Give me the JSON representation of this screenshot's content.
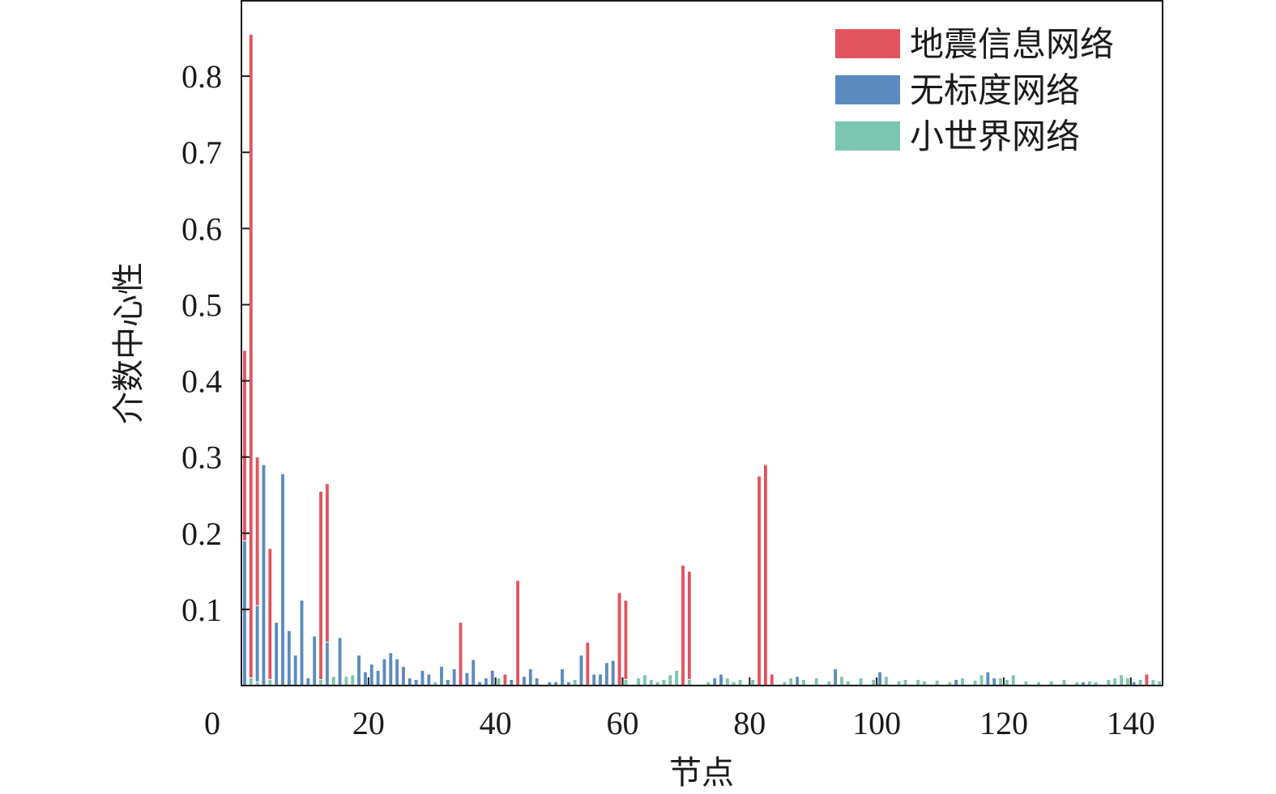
{
  "chart_data": {
    "type": "bar",
    "title": "",
    "xlabel": "节点",
    "ylabel": "介数中心性",
    "xlim": [
      0,
      145
    ],
    "ylim": [
      0,
      0.9
    ],
    "x_ticks": [
      0,
      20,
      40,
      60,
      80,
      100,
      120,
      140
    ],
    "y_ticks": [
      0.1,
      0.2,
      0.3,
      0.4,
      0.5,
      0.6,
      0.7,
      0.8
    ],
    "grid": false,
    "legend_position": "top-right",
    "series": [
      {
        "name": "地震信息网络",
        "color": "#e2545f",
        "points": [
          [
            0,
            0.44
          ],
          [
            1,
            0.855
          ],
          [
            2,
            0.3
          ],
          [
            4,
            0.18
          ],
          [
            12,
            0.255
          ],
          [
            13,
            0.265
          ],
          [
            34,
            0.083
          ],
          [
            41,
            0.015
          ],
          [
            43,
            0.138
          ],
          [
            54,
            0.057
          ],
          [
            59,
            0.122
          ],
          [
            60,
            0.112
          ],
          [
            69,
            0.158
          ],
          [
            70,
            0.15
          ],
          [
            81,
            0.275
          ],
          [
            82,
            0.29
          ],
          [
            83,
            0.015
          ],
          [
            142,
            0.015
          ]
        ]
      },
      {
        "name": "无标度网络",
        "color": "#5b8bbe",
        "points": [
          [
            0,
            0.19
          ],
          [
            2,
            0.105
          ],
          [
            3,
            0.29
          ],
          [
            5,
            0.083
          ],
          [
            6,
            0.278
          ],
          [
            7,
            0.072
          ],
          [
            8,
            0.04
          ],
          [
            9,
            0.112
          ],
          [
            10,
            0.01
          ],
          [
            11,
            0.065
          ],
          [
            13,
            0.057
          ],
          [
            14,
            0.012
          ],
          [
            15,
            0.063
          ],
          [
            16,
            0.005
          ],
          [
            17,
            0.01
          ],
          [
            18,
            0.04
          ],
          [
            19,
            0.018
          ],
          [
            20,
            0.028
          ],
          [
            21,
            0.02
          ],
          [
            22,
            0.035
          ],
          [
            23,
            0.043
          ],
          [
            24,
            0.035
          ],
          [
            25,
            0.025
          ],
          [
            26,
            0.01
          ],
          [
            27,
            0.008
          ],
          [
            28,
            0.02
          ],
          [
            29,
            0.015
          ],
          [
            30,
            0.005
          ],
          [
            31,
            0.025
          ],
          [
            32,
            0.008
          ],
          [
            33,
            0.022
          ],
          [
            35,
            0.017
          ],
          [
            36,
            0.034
          ],
          [
            37,
            0.005
          ],
          [
            38,
            0.01
          ],
          [
            39,
            0.02
          ],
          [
            40,
            0.005
          ],
          [
            42,
            0.008
          ],
          [
            44,
            0.012
          ],
          [
            45,
            0.022
          ],
          [
            46,
            0.01
          ],
          [
            48,
            0.005
          ],
          [
            49,
            0.005
          ],
          [
            50,
            0.022
          ],
          [
            51,
            0.005
          ],
          [
            53,
            0.04
          ],
          [
            55,
            0.015
          ],
          [
            56,
            0.015
          ],
          [
            57,
            0.03
          ],
          [
            58,
            0.033
          ],
          [
            74,
            0.01
          ],
          [
            75,
            0.015
          ],
          [
            87,
            0.012
          ],
          [
            93,
            0.022
          ],
          [
            100,
            0.018
          ],
          [
            112,
            0.008
          ],
          [
            117,
            0.018
          ],
          [
            118,
            0.01
          ],
          [
            132,
            0.005
          ],
          [
            140,
            0.005
          ]
        ]
      },
      {
        "name": "小世界网络",
        "color": "#7cc5b0",
        "points": [
          [
            1,
            0.01
          ],
          [
            2,
            0.005
          ],
          [
            4,
            0.008
          ],
          [
            12,
            0.008
          ],
          [
            14,
            0.012
          ],
          [
            16,
            0.012
          ],
          [
            17,
            0.014
          ],
          [
            30,
            0.005
          ],
          [
            40,
            0.01
          ],
          [
            52,
            0.008
          ],
          [
            60,
            0.008
          ],
          [
            62,
            0.01
          ],
          [
            63,
            0.014
          ],
          [
            64,
            0.008
          ],
          [
            65,
            0.005
          ],
          [
            66,
            0.008
          ],
          [
            67,
            0.014
          ],
          [
            68,
            0.02
          ],
          [
            70,
            0.008
          ],
          [
            73,
            0.005
          ],
          [
            76,
            0.01
          ],
          [
            77,
            0.005
          ],
          [
            78,
            0.008
          ],
          [
            80,
            0.008
          ],
          [
            85,
            0.005
          ],
          [
            86,
            0.01
          ],
          [
            88,
            0.008
          ],
          [
            90,
            0.01
          ],
          [
            92,
            0.006
          ],
          [
            94,
            0.012
          ],
          [
            95,
            0.006
          ],
          [
            97,
            0.01
          ],
          [
            99,
            0.008
          ],
          [
            101,
            0.012
          ],
          [
            103,
            0.006
          ],
          [
            104,
            0.008
          ],
          [
            106,
            0.008
          ],
          [
            107,
            0.006
          ],
          [
            109,
            0.007
          ],
          [
            111,
            0.005
          ],
          [
            113,
            0.01
          ],
          [
            115,
            0.007
          ],
          [
            116,
            0.014
          ],
          [
            119,
            0.01
          ],
          [
            120,
            0.008
          ],
          [
            121,
            0.014
          ],
          [
            123,
            0.006
          ],
          [
            125,
            0.005
          ],
          [
            127,
            0.006
          ],
          [
            129,
            0.008
          ],
          [
            131,
            0.005
          ],
          [
            133,
            0.006
          ],
          [
            134,
            0.005
          ],
          [
            136,
            0.008
          ],
          [
            137,
            0.01
          ],
          [
            138,
            0.014
          ],
          [
            139,
            0.01
          ],
          [
            141,
            0.008
          ],
          [
            143,
            0.008
          ],
          [
            144,
            0.006
          ]
        ]
      }
    ]
  }
}
